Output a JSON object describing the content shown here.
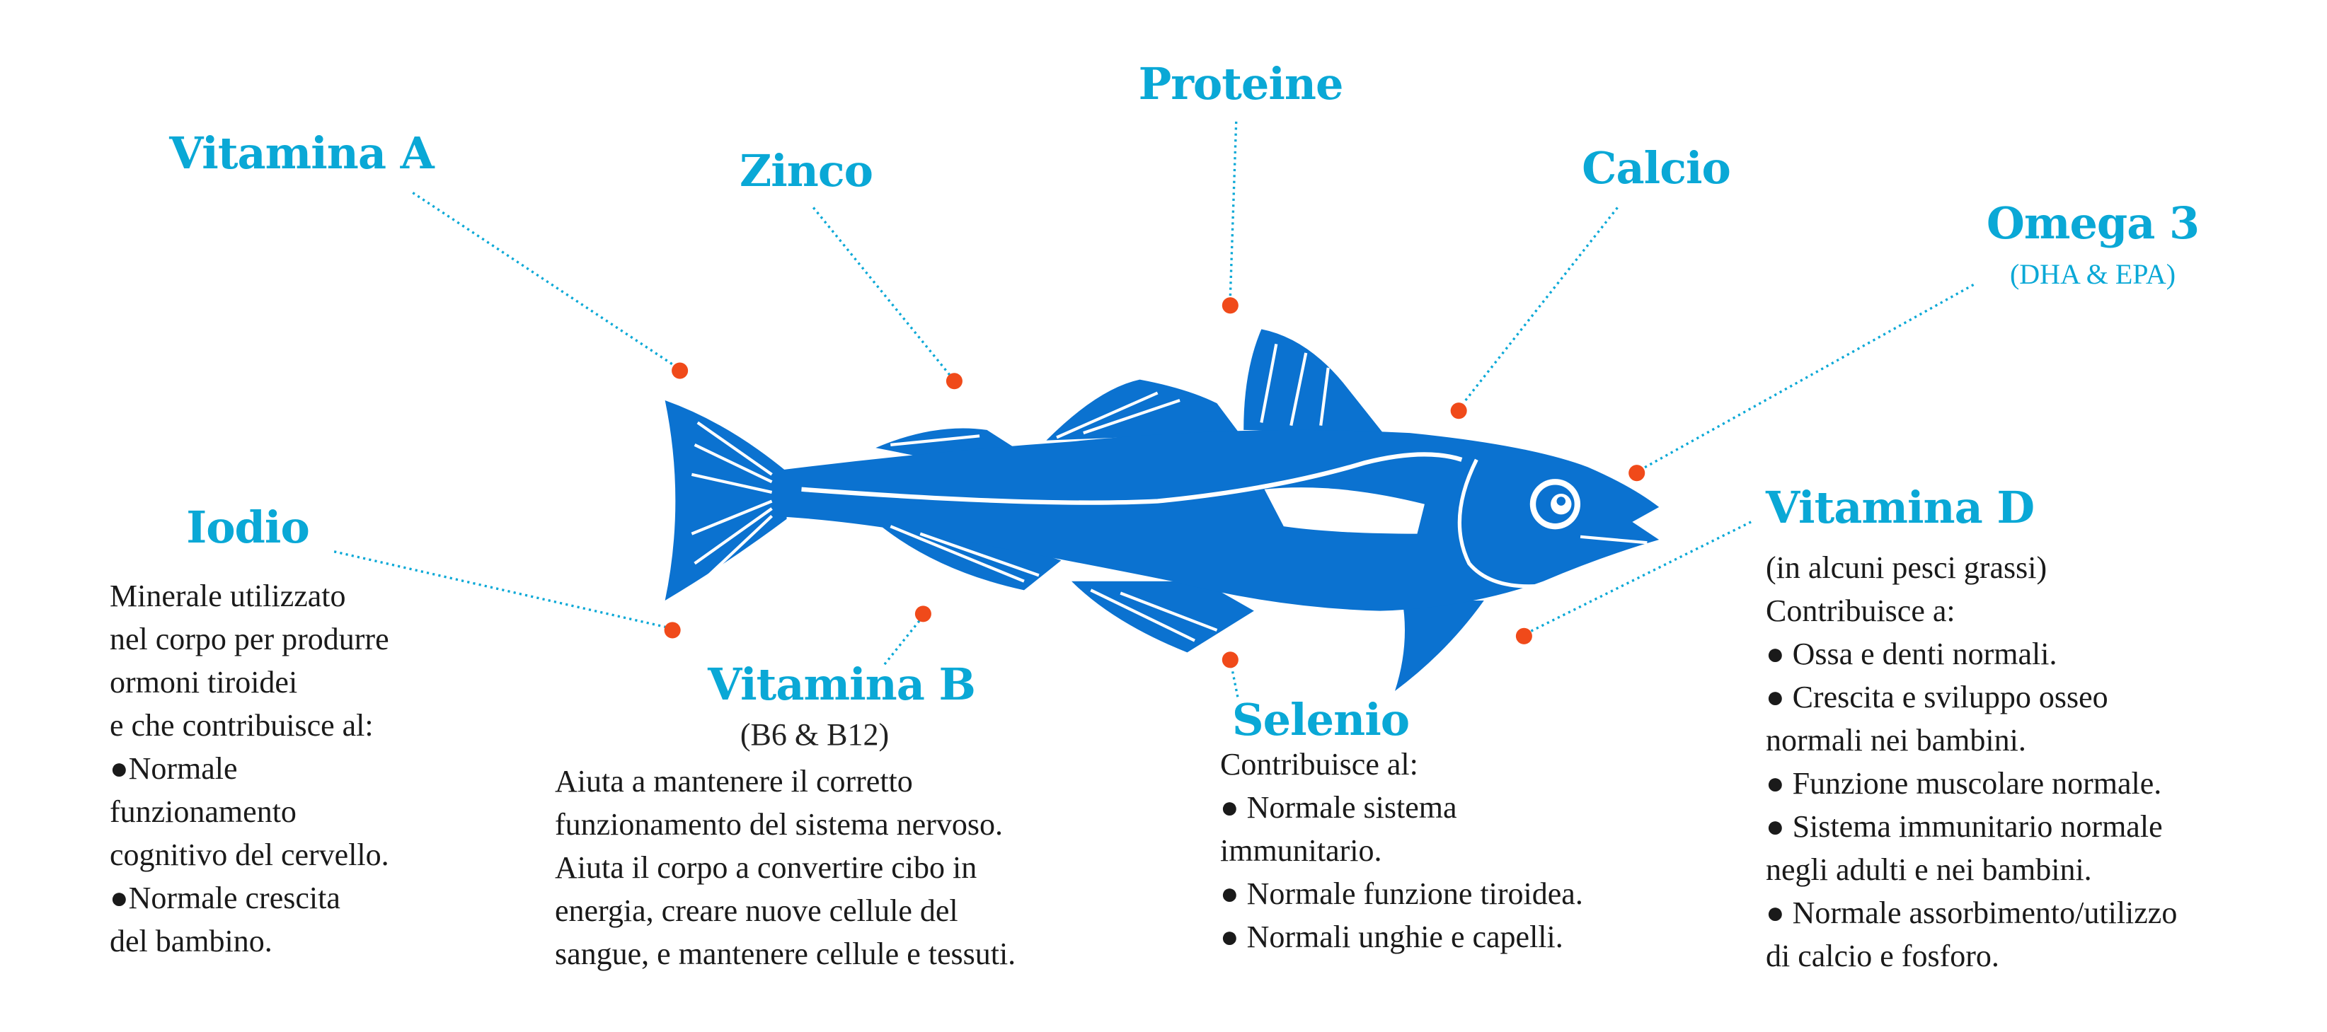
{
  "colors": {
    "fish": "#0b72d0",
    "label": "#0aa8d6",
    "dot": "#f04a1a",
    "text": "#1a1a1a"
  },
  "labels": {
    "vitamina_a": {
      "title": "Vitamina A"
    },
    "zinco": {
      "title": "Zinco"
    },
    "proteine": {
      "title": "Proteine"
    },
    "calcio": {
      "title": "Calcio"
    },
    "omega3": {
      "title": "Omega 3",
      "subtitle": "(DHA & EPA)"
    },
    "iodio": {
      "title": "Iodio",
      "lines": [
        "Minerale utilizzato",
        "nel corpo per produrre",
        "ormoni tiroidei",
        "e che contribuisce al:",
        "●Normale",
        "funzionamento",
        "cognitivo del cervello.",
        "●Normale crescita",
        "del bambino."
      ]
    },
    "vitamina_b": {
      "title": "Vitamina B",
      "subtitle": "(B6 & B12)",
      "lines": [
        "Aiuta a mantenere il corretto",
        "funzionamento del sistema nervoso.",
        "Aiuta il corpo a convertire cibo in",
        "energia, creare nuove cellule del",
        "sangue, e mantenere cellule e tessuti."
      ]
    },
    "selenio": {
      "title": "Selenio",
      "lines": [
        "Contribuisce al:",
        "● Normale sistema",
        "immunitario.",
        "● Normale funzione tiroidea.",
        "● Normali unghie e capelli."
      ]
    },
    "vitamina_d": {
      "title": "Vitamina D",
      "lines": [
        "(in alcuni pesci grassi)",
        "Contribuisce a:",
        "● Ossa e denti normali.",
        "● Crescita e sviluppo osseo",
        "normali nei bambini.",
        "● Funzione muscolare normale.",
        "● Sistema immunitario normale",
        "negli adulti e nei bambini.",
        "● Normale assorbimento/utilizzo",
        "di calcio e fosforo."
      ]
    }
  }
}
